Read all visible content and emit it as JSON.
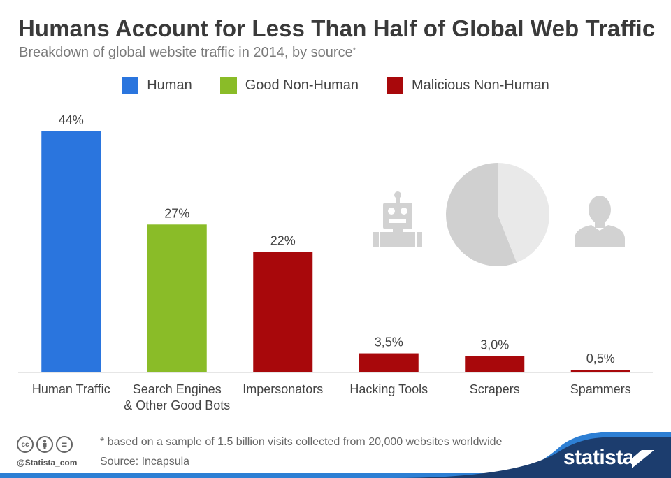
{
  "header": {
    "title": "Humans Account for Less Than Half of Global Web Traffic",
    "subtitle": "Breakdown of global website traffic in 2014, by source",
    "subtitle_mark": "*"
  },
  "legend": [
    {
      "label": "Human",
      "color": "#2a75de"
    },
    {
      "label": "Good Non-Human",
      "color": "#8abc28"
    },
    {
      "label": "Malicious Non-Human",
      "color": "#a8080b"
    }
  ],
  "chart_data": {
    "type": "bar",
    "title": "Humans Account for Less Than Half of Global Web Traffic",
    "subtitle": "Breakdown of global website traffic in 2014, by source",
    "xlabel": "",
    "ylabel": "",
    "ylim": [
      0,
      44
    ],
    "grid": false,
    "legend_position": "top",
    "bars": [
      {
        "category": [
          "Human Traffic"
        ],
        "value": 44,
        "label": "44%",
        "group": "Human",
        "color": "#2a75de"
      },
      {
        "category": [
          "Search Engines",
          "& Other Good Bots"
        ],
        "value": 27,
        "label": "27%",
        "group": "Good Non-Human",
        "color": "#8abc28"
      },
      {
        "category": [
          "Impersonators"
        ],
        "value": 22,
        "label": "22%",
        "group": "Malicious Non-Human",
        "color": "#a8080b"
      },
      {
        "category": [
          "Hacking Tools"
        ],
        "value": 3.5,
        "label": "3,5%",
        "group": "Malicious Non-Human",
        "color": "#a8080b"
      },
      {
        "category": [
          "Scrapers"
        ],
        "value": 3.0,
        "label": "3,0%",
        "group": "Malicious Non-Human",
        "color": "#a8080b"
      },
      {
        "category": [
          "Spammers"
        ],
        "value": 0.5,
        "label": "0,5%",
        "group": "Malicious Non-Human",
        "color": "#a8080b"
      }
    ],
    "illustration": {
      "robot_icon": "robot-icon",
      "pie": {
        "slices": [
          {
            "name": "non-human",
            "value": 56
          },
          {
            "name": "human",
            "value": 44
          }
        ],
        "colors": [
          "#d0d0d0",
          "#e9e9e9"
        ]
      },
      "person_icon": "person-icon"
    }
  },
  "footer": {
    "icons": [
      "cc-icon",
      "attribution-icon",
      "no-derivatives-icon"
    ],
    "cc_glyph": "cc",
    "equal_glyph": "=",
    "handle": "@Statista_com",
    "note": "* based on a sample of 1.5 billion visits collected from 20,000 websites worldwide",
    "source": "Source: Incapsula",
    "brand": "statista",
    "brand_color": "#1c3d6e",
    "accent_color": "#2d7fd4"
  }
}
